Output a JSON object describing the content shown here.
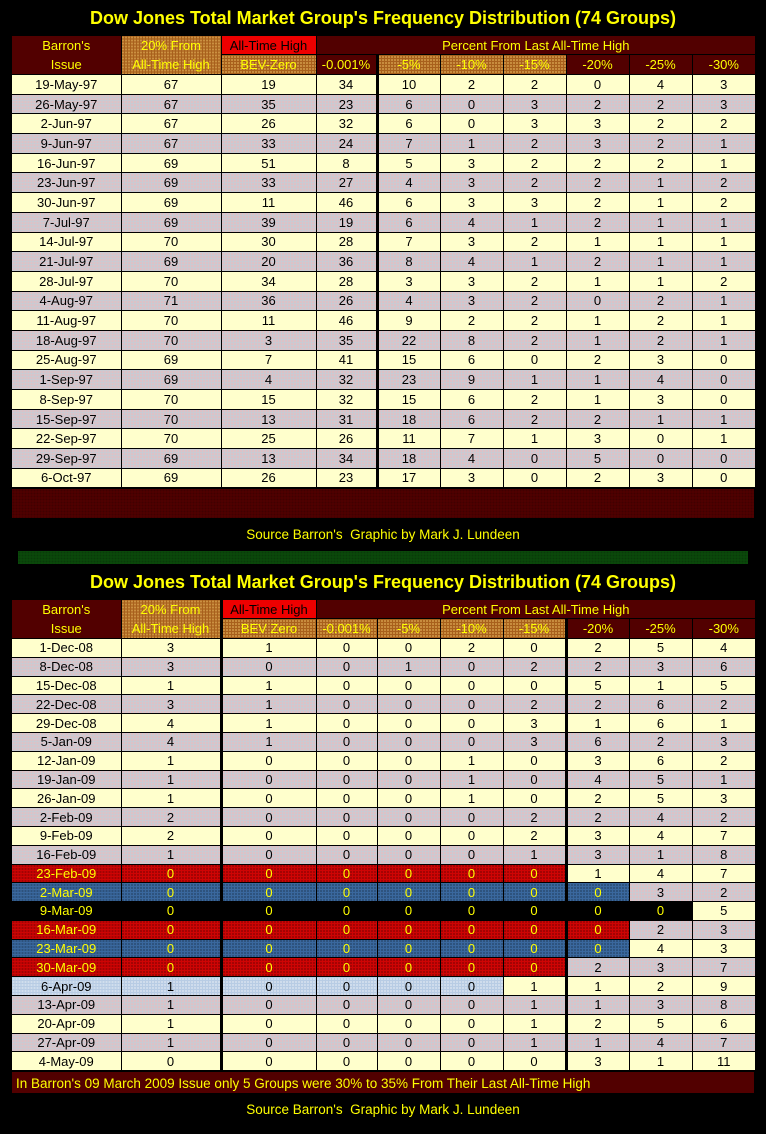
{
  "page": {
    "title": "Dow Jones Total Market Group's Frequency Distribution (74 Groups)",
    "source_credit": "Source Barron's  Graphic by Mark J. Lundeen",
    "footnote": "In Barron's 09 March 2009 Issue only 5 Groups were 30% to 35% From Their Last All-Time High"
  },
  "colors": {
    "page_bg": "#000000",
    "title_text": "#FFFF00",
    "header_maroon": "#520000",
    "header_orange": "#A8601C",
    "header_red": "#EE0000",
    "row_cream": "#FFFFCC",
    "row_gray": "#CACAD2",
    "band_red": "#CE0404",
    "band_blue": "#3A689E",
    "band_black": "#000000",
    "band_lightblue": "#B8CCE4",
    "divider_green": "#0B4B0B",
    "grid_black": "#000000"
  },
  "tables": [
    {
      "id": "t1",
      "header": {
        "issue_top": "Barron's",
        "issue_bottom": "Issue",
        "from_top": "20% From",
        "from_bottom": "All-Time High",
        "ath_top": "All-Time High",
        "ath_bottom": "BEV-Zero",
        "pct_span": "Percent From Last All-Time High",
        "pct_cols": [
          "-0.001%",
          "-5%",
          "-10%",
          "-15%",
          "-20%",
          "-25%",
          "-30%"
        ],
        "pct_orange": [
          false,
          true,
          true,
          true,
          false,
          false,
          false
        ]
      },
      "rows": [
        {
          "date": "19-May-97",
          "values": [
            67,
            19,
            34,
            10,
            2,
            2,
            0,
            4,
            3
          ]
        },
        {
          "date": "26-May-97",
          "values": [
            67,
            35,
            23,
            6,
            0,
            3,
            2,
            2,
            3
          ]
        },
        {
          "date": "2-Jun-97",
          "values": [
            67,
            26,
            32,
            6,
            0,
            3,
            3,
            2,
            2
          ]
        },
        {
          "date": "9-Jun-97",
          "values": [
            67,
            33,
            24,
            7,
            1,
            2,
            3,
            2,
            1
          ]
        },
        {
          "date": "16-Jun-97",
          "values": [
            69,
            51,
            8,
            5,
            3,
            2,
            2,
            2,
            1
          ]
        },
        {
          "date": "23-Jun-97",
          "values": [
            69,
            33,
            27,
            4,
            3,
            2,
            2,
            1,
            2
          ]
        },
        {
          "date": "30-Jun-97",
          "values": [
            69,
            11,
            46,
            6,
            3,
            3,
            2,
            1,
            2
          ]
        },
        {
          "date": "7-Jul-97",
          "values": [
            69,
            39,
            19,
            6,
            4,
            1,
            2,
            1,
            1
          ]
        },
        {
          "date": "14-Jul-97",
          "values": [
            70,
            30,
            28,
            7,
            3,
            2,
            1,
            1,
            1
          ]
        },
        {
          "date": "21-Jul-97",
          "values": [
            69,
            20,
            36,
            8,
            4,
            1,
            2,
            1,
            1
          ]
        },
        {
          "date": "28-Jul-97",
          "values": [
            70,
            34,
            28,
            3,
            3,
            2,
            1,
            1,
            2
          ]
        },
        {
          "date": "4-Aug-97",
          "values": [
            71,
            36,
            26,
            4,
            3,
            2,
            0,
            2,
            1
          ]
        },
        {
          "date": "11-Aug-97",
          "values": [
            70,
            11,
            46,
            9,
            2,
            2,
            1,
            2,
            1
          ]
        },
        {
          "date": "18-Aug-97",
          "values": [
            70,
            3,
            35,
            22,
            8,
            2,
            1,
            2,
            1
          ]
        },
        {
          "date": "25-Aug-97",
          "values": [
            69,
            7,
            41,
            15,
            6,
            0,
            2,
            3,
            0
          ]
        },
        {
          "date": "1-Sep-97",
          "values": [
            69,
            4,
            32,
            23,
            9,
            1,
            1,
            4,
            0
          ]
        },
        {
          "date": "8-Sep-97",
          "values": [
            70,
            15,
            32,
            15,
            6,
            2,
            1,
            3,
            0
          ]
        },
        {
          "date": "15-Sep-97",
          "values": [
            70,
            13,
            31,
            18,
            6,
            2,
            2,
            1,
            1
          ]
        },
        {
          "date": "22-Sep-97",
          "values": [
            70,
            25,
            26,
            11,
            7,
            1,
            3,
            0,
            1
          ]
        },
        {
          "date": "29-Sep-97",
          "values": [
            69,
            13,
            34,
            18,
            4,
            0,
            5,
            0,
            0
          ]
        },
        {
          "date": "6-Oct-97",
          "values": [
            69,
            26,
            23,
            17,
            3,
            0,
            2,
            3,
            0
          ]
        }
      ]
    },
    {
      "id": "t2",
      "header": {
        "issue_top": "Barron's",
        "issue_bottom": "Issue",
        "from_top": "20% From",
        "from_bottom": "All-Time High",
        "ath_top": "All-Time High",
        "ath_bottom": "BEV Zero",
        "pct_span": "Percent From Last All-Time High",
        "pct_cols": [
          "-0.001%",
          "-5%",
          "-10%",
          "-15%",
          "-20%",
          "-25%",
          "-30%"
        ],
        "pct_orange": [
          true,
          true,
          true,
          true,
          false,
          false,
          false
        ]
      },
      "rows": [
        {
          "date": "1-Dec-08",
          "values": [
            3,
            1,
            0,
            0,
            2,
            0,
            2,
            5,
            4
          ]
        },
        {
          "date": "8-Dec-08",
          "values": [
            3,
            0,
            0,
            1,
            0,
            2,
            2,
            3,
            6
          ]
        },
        {
          "date": "15-Dec-08",
          "values": [
            1,
            1,
            0,
            0,
            0,
            0,
            5,
            1,
            5
          ]
        },
        {
          "date": "22-Dec-08",
          "values": [
            3,
            1,
            0,
            0,
            0,
            2,
            2,
            6,
            2
          ]
        },
        {
          "date": "29-Dec-08",
          "values": [
            4,
            1,
            0,
            0,
            0,
            3,
            1,
            6,
            1
          ]
        },
        {
          "date": "5-Jan-09",
          "values": [
            4,
            1,
            0,
            0,
            0,
            3,
            6,
            2,
            3
          ]
        },
        {
          "date": "12-Jan-09",
          "values": [
            1,
            0,
            0,
            0,
            1,
            0,
            3,
            6,
            2
          ]
        },
        {
          "date": "19-Jan-09",
          "values": [
            1,
            0,
            0,
            0,
            1,
            0,
            4,
            5,
            1
          ]
        },
        {
          "date": "26-Jan-09",
          "values": [
            1,
            0,
            0,
            0,
            1,
            0,
            2,
            5,
            3
          ]
        },
        {
          "date": "2-Feb-09",
          "values": [
            2,
            0,
            0,
            0,
            0,
            2,
            2,
            4,
            2
          ]
        },
        {
          "date": "9-Feb-09",
          "values": [
            2,
            0,
            0,
            0,
            0,
            2,
            3,
            4,
            7
          ]
        },
        {
          "date": "16-Feb-09",
          "values": [
            1,
            0,
            0,
            0,
            0,
            1,
            3,
            1,
            8
          ]
        },
        {
          "date": "23-Feb-09",
          "values": [
            0,
            0,
            0,
            0,
            0,
            0,
            1,
            4,
            7
          ],
          "band": "red",
          "band_cells": 6
        },
        {
          "date": "2-Mar-09",
          "values": [
            0,
            0,
            0,
            0,
            0,
            0,
            0,
            3,
            2
          ],
          "band": "blue",
          "band_cells": 7
        },
        {
          "date": "9-Mar-09",
          "values": [
            0,
            0,
            0,
            0,
            0,
            0,
            0,
            0,
            5
          ],
          "band": "black",
          "band_cells": 8
        },
        {
          "date": "16-Mar-09",
          "values": [
            0,
            0,
            0,
            0,
            0,
            0,
            0,
            2,
            3
          ],
          "band": "red",
          "band_cells": 7
        },
        {
          "date": "23-Mar-09",
          "values": [
            0,
            0,
            0,
            0,
            0,
            0,
            0,
            4,
            3
          ],
          "band": "blue",
          "band_cells": 7
        },
        {
          "date": "30-Mar-09",
          "values": [
            0,
            0,
            0,
            0,
            0,
            0,
            2,
            3,
            7
          ],
          "band": "red",
          "band_cells": 6
        },
        {
          "date": "6-Apr-09",
          "values": [
            1,
            0,
            0,
            0,
            0,
            1,
            1,
            2,
            9
          ],
          "band": "lightblue",
          "band_cells": 5
        },
        {
          "date": "13-Apr-09",
          "values": [
            1,
            0,
            0,
            0,
            0,
            1,
            1,
            3,
            8
          ]
        },
        {
          "date": "20-Apr-09",
          "values": [
            1,
            0,
            0,
            0,
            0,
            1,
            2,
            5,
            6
          ]
        },
        {
          "date": "27-Apr-09",
          "values": [
            1,
            0,
            0,
            0,
            0,
            1,
            1,
            4,
            7
          ]
        },
        {
          "date": "4-May-09",
          "values": [
            0,
            0,
            0,
            0,
            0,
            0,
            3,
            1,
            11
          ]
        }
      ]
    }
  ]
}
